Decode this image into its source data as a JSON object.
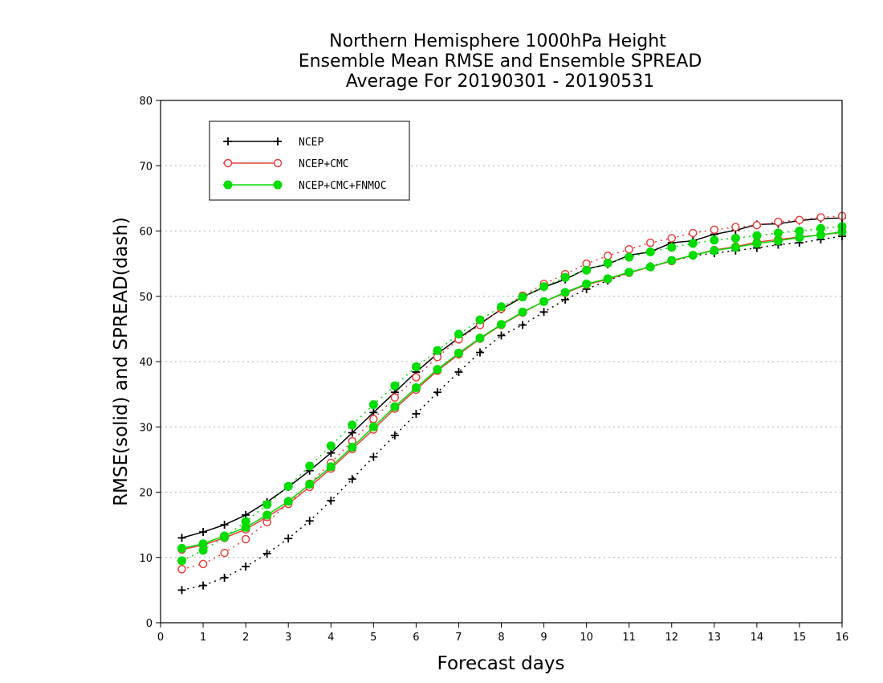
{
  "chart_data": {
    "type": "line",
    "title": [
      "Northern Hemisphere 1000hPa Height",
      "Ensemble Mean RMSE and Ensemble SPREAD",
      "Average For 20190301 - 20190531"
    ],
    "xlabel": "Forecast days",
    "ylabel": "RMSE(solid) and SPREAD(dash)",
    "xlim": [
      0,
      16
    ],
    "ylim": [
      0,
      80
    ],
    "xticks": [
      "0",
      "1",
      "2",
      "3",
      "4",
      "5",
      "6",
      "7",
      "8",
      "9",
      "10",
      "11",
      "12",
      "13",
      "14",
      "15",
      "16"
    ],
    "yticks": [
      "0",
      "10",
      "20",
      "30",
      "40",
      "50",
      "60",
      "70",
      "80"
    ],
    "grid": true,
    "legend_position": "top-left",
    "x": [
      0.5,
      1,
      1.5,
      2,
      2.5,
      3,
      3.5,
      4,
      4.5,
      5,
      5.5,
      6,
      6.5,
      7,
      7.5,
      8,
      8.5,
      9,
      9.5,
      10,
      10.5,
      11,
      11.5,
      12,
      12.5,
      13,
      13.5,
      14,
      14.5,
      15,
      15.5,
      16
    ],
    "series": [
      {
        "name": "NCEP",
        "color": "#000000",
        "marker": "plus",
        "rmse": [
          13.0,
          13.9,
          15.0,
          16.5,
          18.5,
          20.8,
          23.3,
          26.0,
          29.1,
          32.2,
          35.3,
          38.4,
          41.2,
          43.6,
          45.8,
          48.0,
          49.9,
          51.4,
          52.6,
          54.2,
          54.9,
          56.3,
          56.8,
          58.2,
          58.5,
          59.5,
          60.1,
          61.0,
          61.1,
          61.6,
          61.9,
          62.0
        ],
        "spread": [
          5.0,
          5.7,
          6.9,
          8.6,
          10.6,
          12.9,
          15.6,
          18.7,
          22.0,
          25.4,
          28.7,
          32.0,
          35.3,
          38.4,
          41.4,
          44.0,
          45.6,
          47.6,
          49.5,
          51.1,
          52.4,
          53.6,
          54.6,
          55.4,
          56.2,
          56.6,
          57.0,
          57.4,
          57.9,
          58.2,
          58.7,
          59.2
        ]
      },
      {
        "name": "NCEP+CMC",
        "color": "#e8403c",
        "marker": "open-circle",
        "rmse": [
          11.2,
          11.9,
          13.0,
          14.3,
          16.2,
          18.2,
          20.8,
          23.6,
          26.6,
          29.6,
          32.8,
          35.7,
          38.6,
          41.1,
          43.5,
          45.6,
          47.5,
          49.2,
          50.5,
          51.8,
          52.6,
          53.6,
          54.5,
          55.4,
          56.3,
          57.1,
          57.6,
          58.3,
          58.7,
          59.1,
          59.4,
          59.8
        ],
        "spread": [
          8.2,
          9.0,
          10.7,
          12.8,
          15.4,
          18.3,
          21.3,
          24.5,
          27.8,
          31.2,
          34.5,
          37.6,
          40.7,
          43.4,
          45.6,
          48.1,
          50.1,
          51.9,
          53.4,
          55.0,
          56.2,
          57.2,
          58.2,
          58.9,
          59.7,
          60.2,
          60.6,
          60.9,
          61.4,
          61.7,
          62.1,
          62.3
        ]
      },
      {
        "name": "NCEP+CMC+FNMOC",
        "color": "#00dd00",
        "marker": "filled-circle",
        "rmse": [
          11.4,
          12.1,
          13.3,
          14.6,
          16.5,
          18.6,
          21.2,
          23.9,
          26.9,
          30.0,
          33.1,
          36.0,
          38.8,
          41.3,
          43.6,
          45.7,
          47.6,
          49.2,
          50.6,
          51.9,
          52.7,
          53.7,
          54.5,
          55.5,
          56.3,
          57.0,
          57.5,
          58.1,
          58.5,
          59.0,
          59.4,
          59.9
        ],
        "spread": [
          9.5,
          11.1,
          13.1,
          15.5,
          18.1,
          20.9,
          24.0,
          27.1,
          30.3,
          33.4,
          36.3,
          39.2,
          41.7,
          44.2,
          46.4,
          48.4,
          49.9,
          51.5,
          52.9,
          54.0,
          55.1,
          56.0,
          56.8,
          57.5,
          58.1,
          58.6,
          58.9,
          59.3,
          59.7,
          60.0,
          60.4,
          60.7
        ]
      }
    ]
  }
}
